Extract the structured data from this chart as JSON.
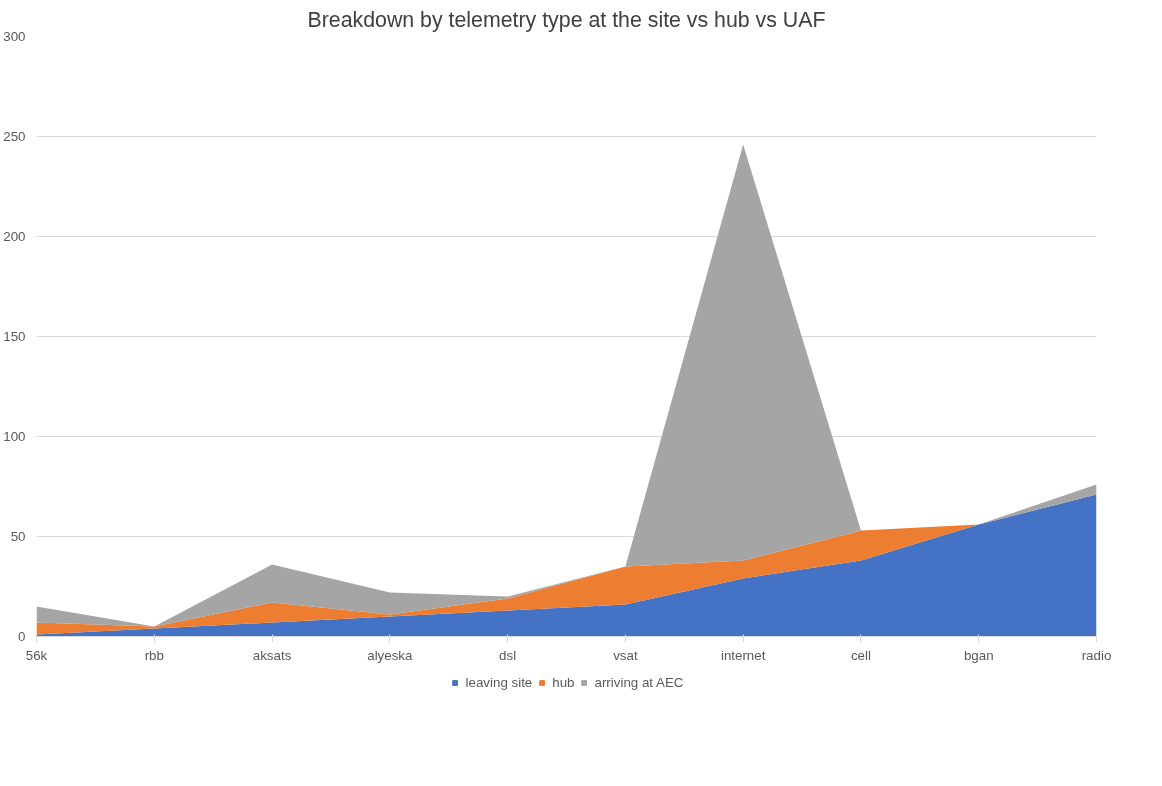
{
  "chart_data": {
    "type": "area",
    "title": "Breakdown by telemetry type at the site vs hub vs UAF",
    "categories": [
      "56k",
      "rbb",
      "aksats",
      "alyeska",
      "dsl",
      "vsat",
      "internet",
      "cell",
      "bgan",
      "radio"
    ],
    "stacked": true,
    "series": [
      {
        "name": "leaving site",
        "color": "#4472c4",
        "values": [
          1,
          4,
          7,
          10,
          13,
          16,
          29,
          38,
          56,
          71
        ]
      },
      {
        "name": "hub",
        "color": "#ed7d31",
        "values": [
          6,
          1,
          10,
          1,
          6,
          19,
          9,
          15,
          0,
          0
        ]
      },
      {
        "name": "arriving at AEC",
        "color": "#a5a5a5",
        "values": [
          8,
          0,
          19,
          11,
          1,
          0,
          208,
          0,
          0,
          5
        ]
      }
    ],
    "ylim": [
      0,
      300
    ],
    "yticks": [
      0,
      50,
      100,
      150,
      200,
      250,
      300
    ],
    "grid": "y",
    "legend": "bottom"
  }
}
